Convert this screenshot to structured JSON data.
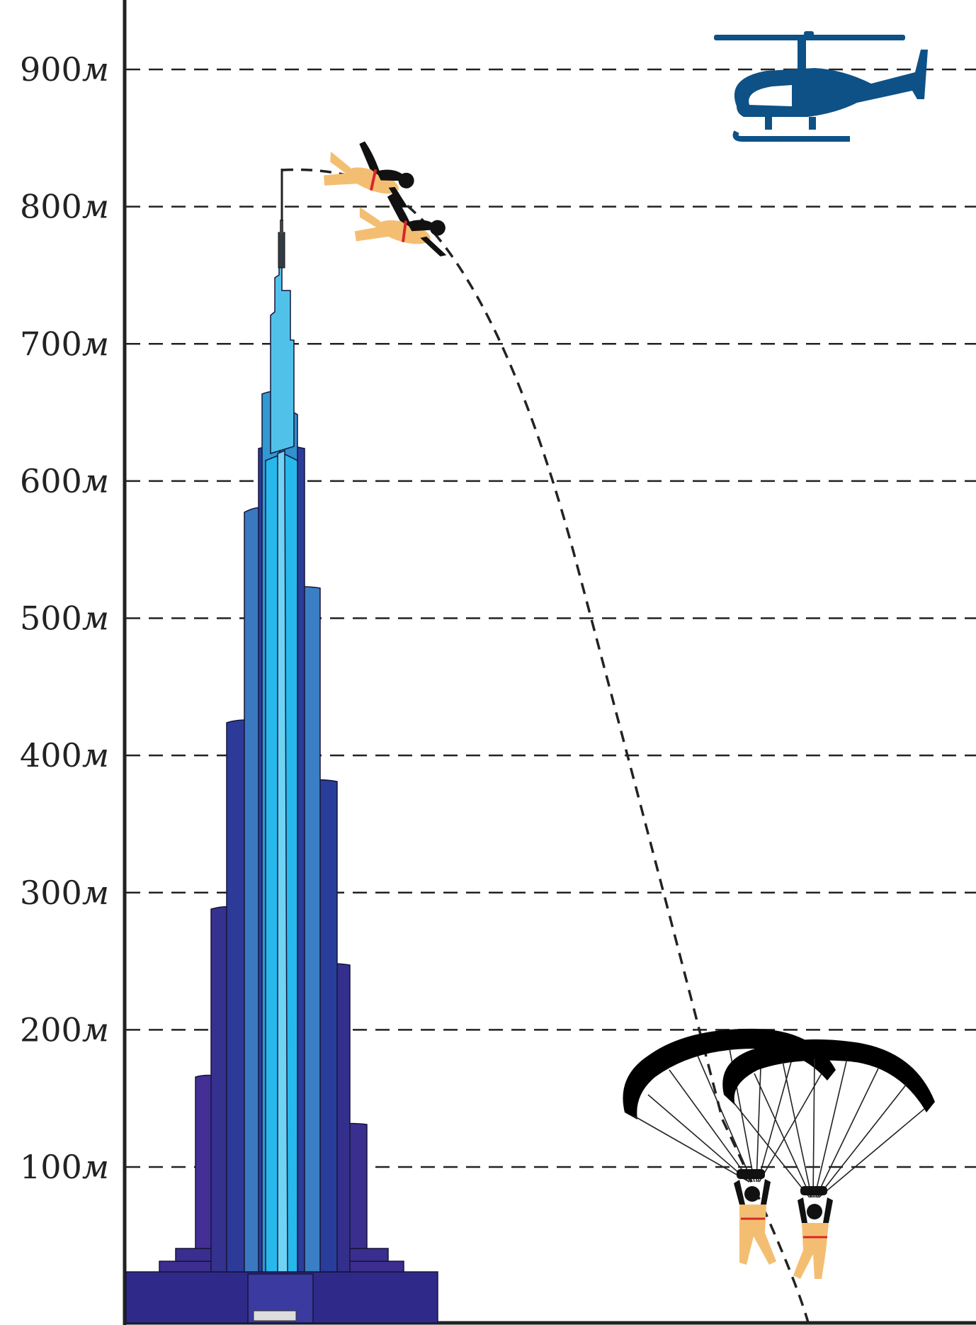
{
  "y_axis": {
    "ticks": [
      {
        "value": 900,
        "number": "900",
        "unit": "м"
      },
      {
        "value": 800,
        "number": "800",
        "unit": "м"
      },
      {
        "value": 700,
        "number": "700",
        "unit": "м"
      },
      {
        "value": 600,
        "number": "600",
        "unit": "м"
      },
      {
        "value": 500,
        "number": "500",
        "unit": "м"
      },
      {
        "value": 400,
        "number": "400",
        "unit": "м"
      },
      {
        "value": 300,
        "number": "300",
        "unit": "м"
      },
      {
        "value": 200,
        "number": "200",
        "unit": "м"
      },
      {
        "value": 100,
        "number": "100",
        "unit": "м"
      }
    ],
    "gridlines": "dashed"
  },
  "icons": [
    "skyscraper-icon",
    "helicopter-icon",
    "skydiver-icon",
    "parachute-icon"
  ],
  "colors": {
    "helicopter": "#0d5186",
    "building_base": "#3a2f8e",
    "building_mid": "#2e3f9a",
    "building_upper": "#3a7ec4",
    "building_spire": "#37b8e8",
    "skydiver_suit": "#f4be72",
    "harness_accent": "#d8262c",
    "canopy": "#000000"
  }
}
